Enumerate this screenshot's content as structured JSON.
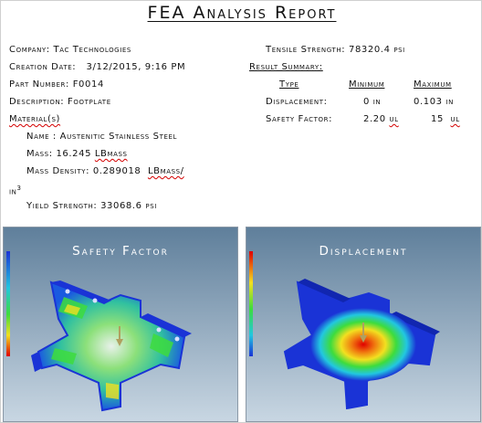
{
  "report": {
    "title": "FEA Analysis Report",
    "company": "Company: Tac Technologies",
    "creation_date_label": "Creation Date:",
    "creation_date": "3/12/2015, 9:16 PM",
    "part_number": "Part Number: F0014",
    "description": "Description: Footplate",
    "material_heading": "Material(s)",
    "material_name": "Name : Austenitic Stainless Steel",
    "mass_label": "Mass: 16.245",
    "mass_unit": "LBmass",
    "density_label": "Mass  Density:  0.289018",
    "density_unit": "LBmass/",
    "density_unit_cont": "in",
    "density_unit_exp": "3",
    "yield_strength": "Yield Strength: 33068.6 psi",
    "tensile_strength": "Tensile Strength: 78320.4 psi",
    "result_summary_heading": "Result Summary:",
    "col_type": "Type",
    "col_min": "Minimum",
    "col_max": "Maximum",
    "row_displacement": {
      "label": "Displacement:",
      "min": "0 in",
      "max": "0.103 in"
    },
    "row_safety": {
      "label": "Safety Factor:",
      "min_value": "2.20",
      "min_unit": "ul",
      "max_value": "15",
      "max_unit": "ul"
    }
  },
  "panels": {
    "safety_factor_title": "Safety Factor",
    "displacement_title": "Displacement"
  },
  "colors": {
    "panel_bg_top": "#5f7f9b",
    "panel_bg_bottom": "#c9d7e3",
    "mesh_blue": "#1a33d6",
    "hot_red": "#e00000",
    "link_red": "#d40000"
  }
}
